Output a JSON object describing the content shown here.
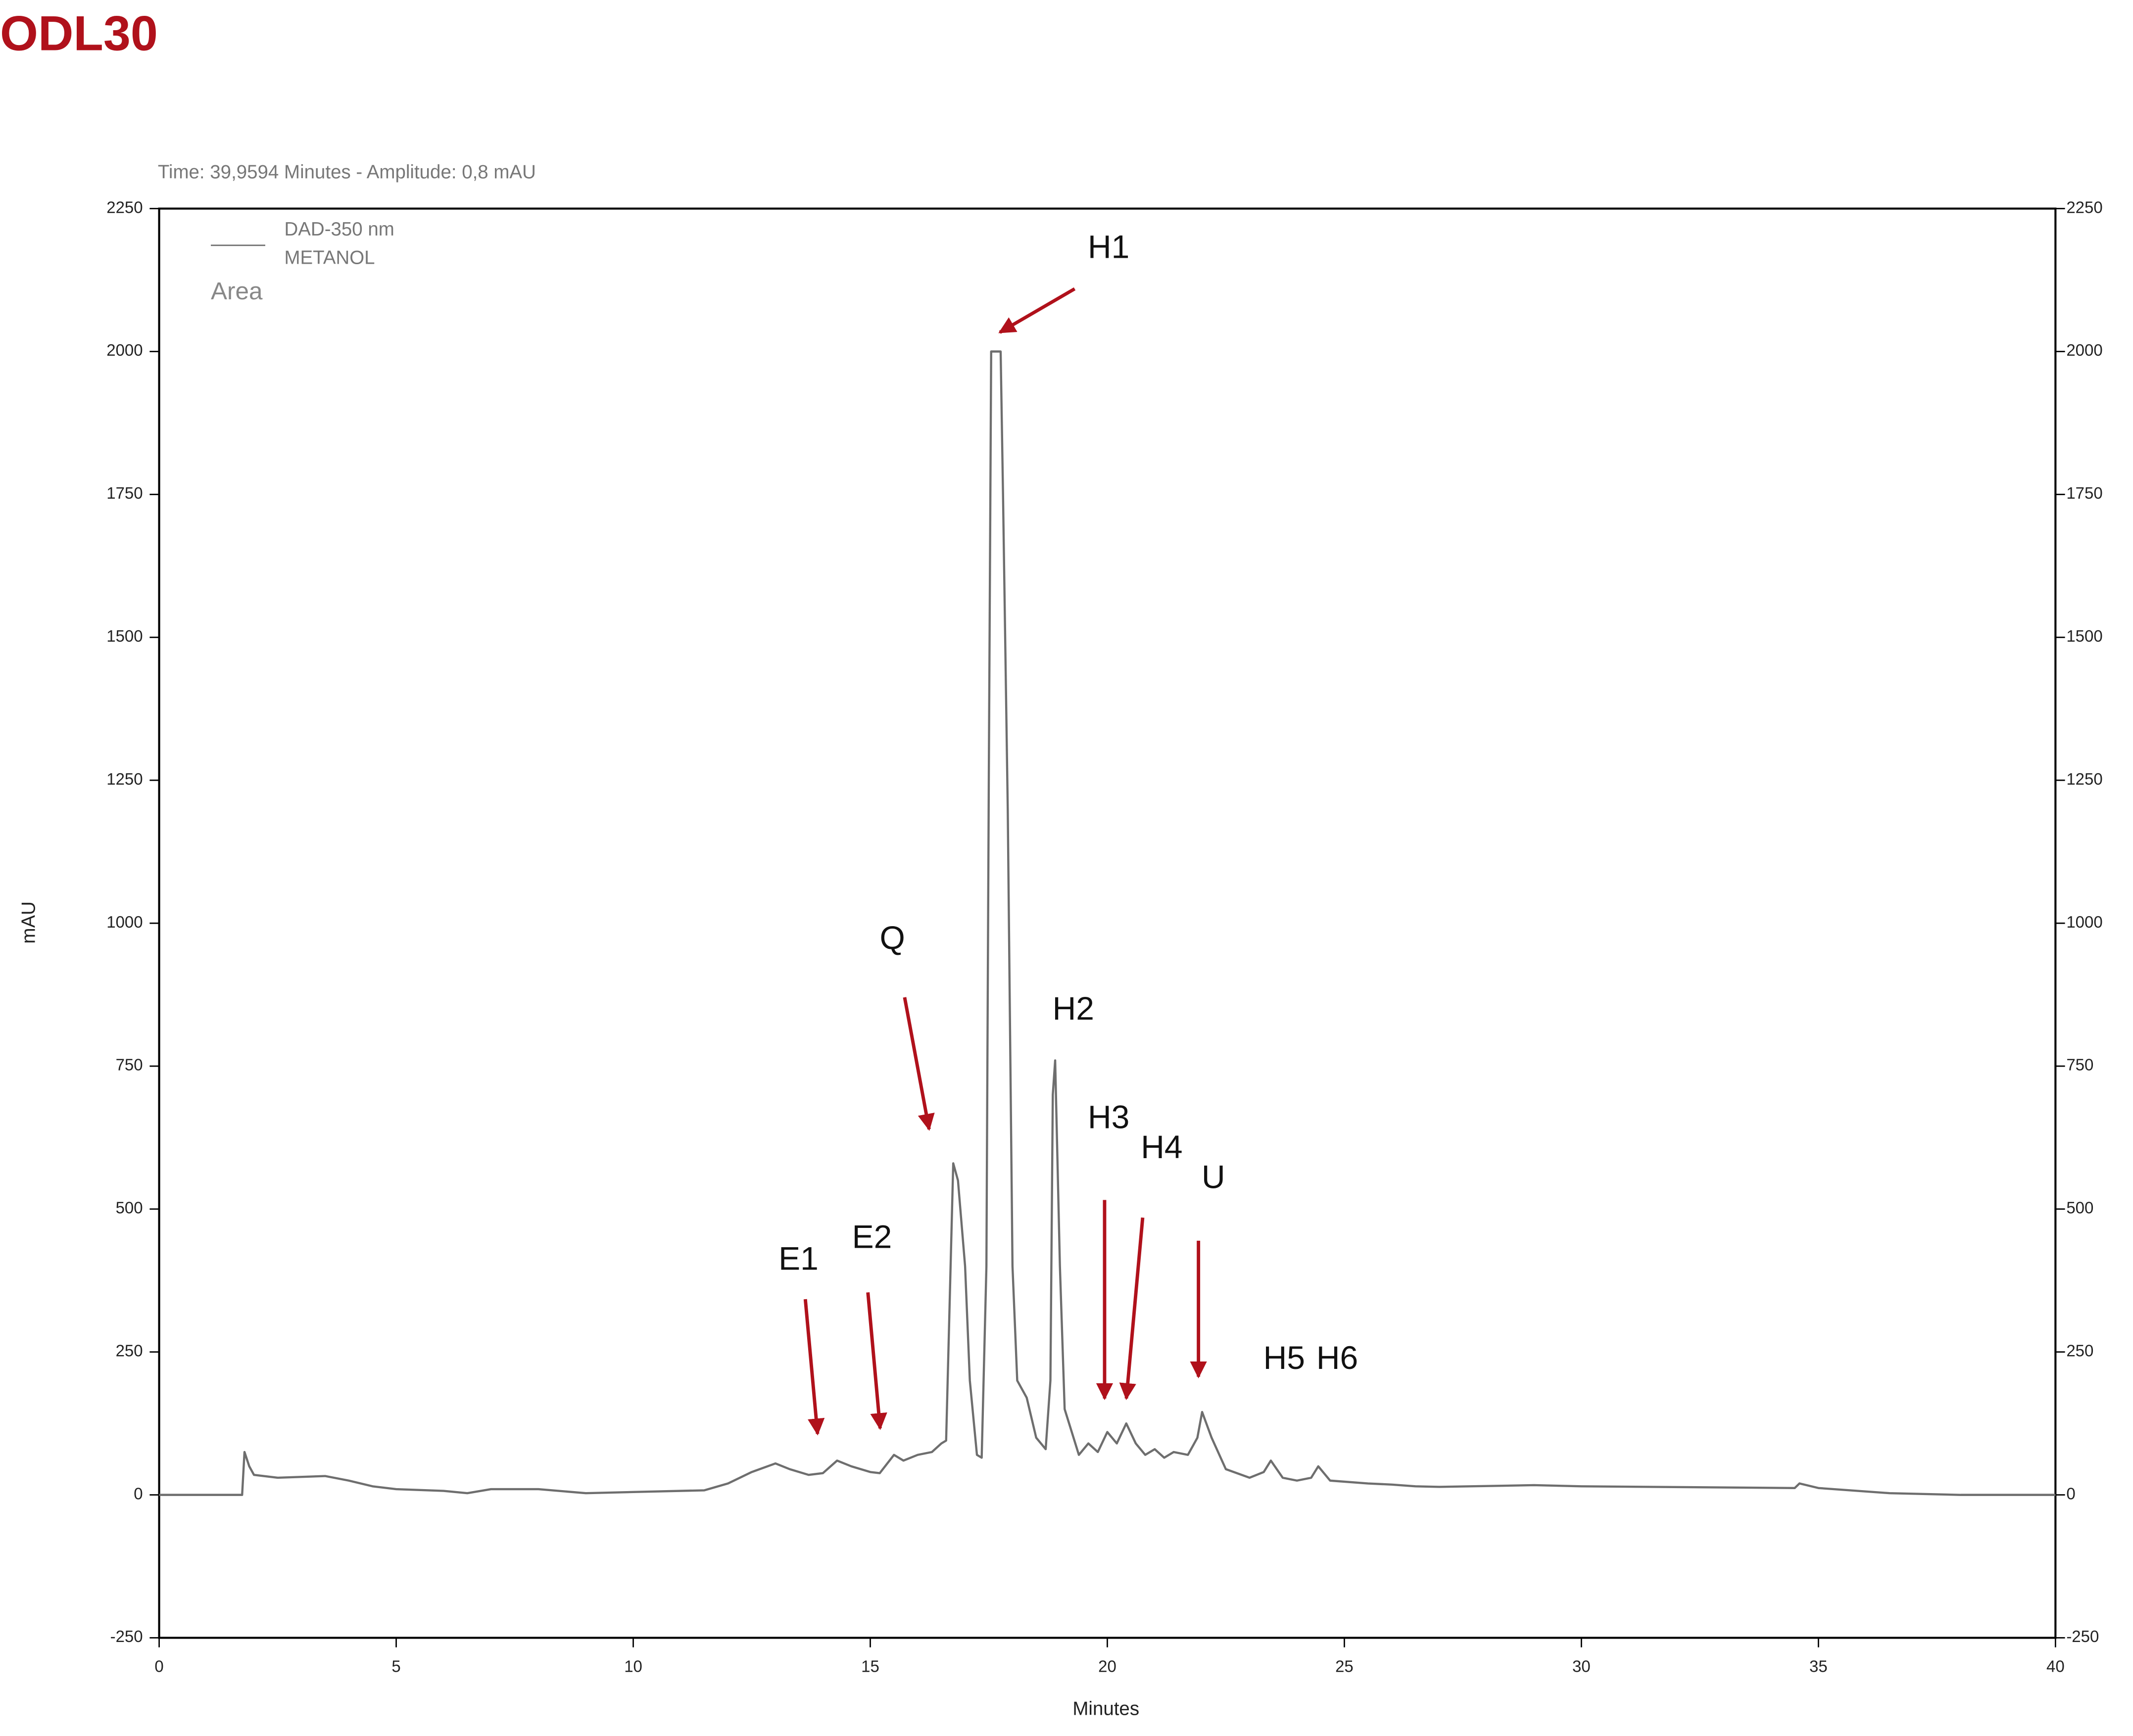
{
  "chart_data": {
    "type": "line",
    "title": "ODL30",
    "status_text": "Time:  39,9594 Minutes - Amplitude:  0,8 mAU",
    "x_label": "Minutes",
    "y_label": "mAU",
    "legend_subtitle": "METANOL",
    "legend_note": "Area",
    "x": [
      0,
      1.75,
      1.8,
      1.9,
      2.0,
      2.5,
      3.5,
      4.0,
      4.5,
      5,
      6,
      6.5,
      7,
      8,
      9,
      10,
      11.5,
      12,
      12.5,
      13,
      13.3,
      13.7,
      14.0,
      14.3,
      14.6,
      15,
      15.2,
      15.5,
      15.7,
      16,
      16.3,
      16.5,
      16.6,
      16.75,
      16.85,
      17.0,
      17.1,
      17.25,
      17.35,
      17.45,
      17.5,
      17.55,
      17.75,
      17.8,
      17.9,
      18.0,
      18.1,
      18.3,
      18.5,
      18.7,
      18.8,
      18.85,
      18.9,
      19.0,
      19.1,
      19.4,
      19.6,
      19.8,
      20.0,
      20.2,
      20.4,
      20.6,
      20.8,
      21.0,
      21.2,
      21.4,
      21.7,
      21.9,
      22.0,
      22.2,
      22.5,
      23.0,
      23.3,
      23.45,
      23.7,
      24.0,
      24.3,
      24.45,
      24.7,
      25.5,
      26,
      26.5,
      27,
      29,
      30,
      34.5,
      34.6,
      35,
      36.5,
      38,
      40
    ],
    "series": [
      {
        "name": "DAD-350 nm",
        "color": "#6e6e6e",
        "values": [
          0,
          0,
          75,
          50,
          35,
          30,
          33,
          25,
          15,
          10,
          7,
          3,
          10,
          10,
          3,
          5,
          8,
          20,
          40,
          55,
          45,
          35,
          38,
          60,
          50,
          40,
          38,
          70,
          60,
          70,
          75,
          90,
          95,
          580,
          550,
          400,
          200,
          70,
          65,
          400,
          1250,
          2000,
          2000,
          1750,
          1200,
          400,
          200,
          170,
          100,
          80,
          200,
          700,
          760,
          400,
          150,
          70,
          90,
          75,
          110,
          90,
          125,
          90,
          70,
          80,
          65,
          75,
          70,
          100,
          145,
          100,
          45,
          30,
          40,
          60,
          30,
          25,
          30,
          50,
          25,
          20,
          18,
          15,
          14,
          17,
          15,
          12,
          20,
          12,
          3,
          0,
          0
        ]
      }
    ],
    "xlim": [
      0,
      40
    ],
    "xticks": [
      0,
      5,
      10,
      15,
      20,
      25,
      30,
      35,
      40
    ],
    "ylim": [
      -250,
      2250
    ],
    "yticks": [
      -250,
      0,
      250,
      500,
      750,
      1000,
      1250,
      1500,
      1750,
      2000,
      2250
    ],
    "y2lim": [
      -250,
      2250
    ],
    "y2ticks": [
      -250,
      0,
      250,
      500,
      750,
      1000,
      1250,
      1500,
      1750,
      2000,
      2250
    ],
    "annotations": [
      {
        "text": "H1"
      },
      {
        "text": "Q"
      },
      {
        "text": "H2"
      },
      {
        "text": "H3"
      },
      {
        "text": "H4"
      },
      {
        "text": "U"
      },
      {
        "text": "E1"
      },
      {
        "text": "E2"
      },
      {
        "text": "H5"
      },
      {
        "text": "H6"
      }
    ]
  }
}
